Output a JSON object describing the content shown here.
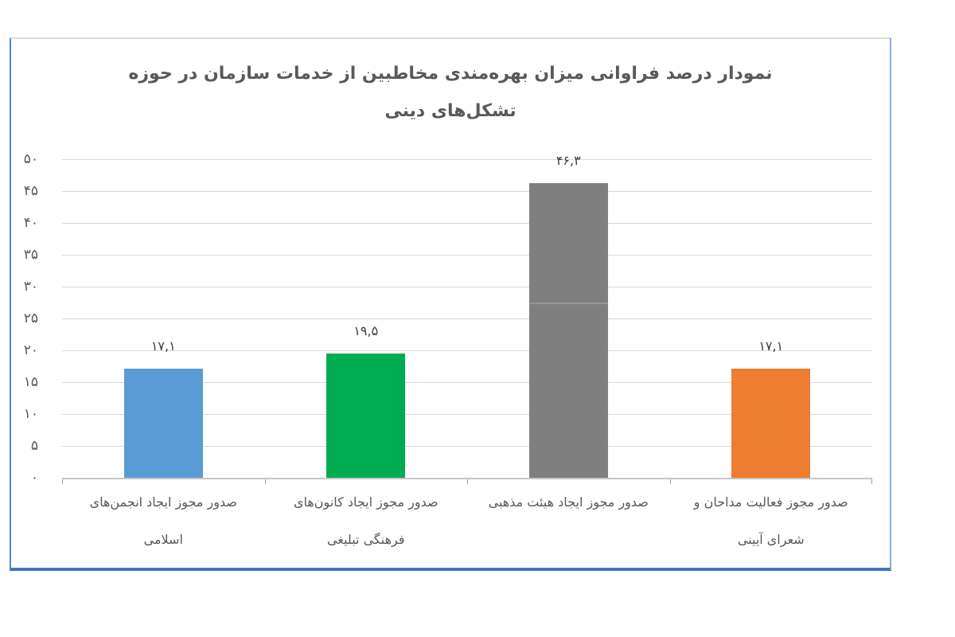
{
  "chart": {
    "title_line1": "نمودار درصد فراوانی میزان بهره‌مندی مخاطبین از خدمات سازمان در حوزه",
    "title_line2": "تشکل‌های دینی"
  },
  "chart_data": {
    "type": "bar",
    "direction": "rtl",
    "title": "نمودار درصد فراوانی میزان بهره‌مندی مخاطبین از خدمات سازمان در حوزه تشکل‌های دینی",
    "categories": [
      "صدور مجوز ایجاد انجمن‌های اسلامی",
      "صدور مجوز ایجاد کانون‌های فرهنگی تبلیغی",
      "صدور مجوز ایجاد هیئت مذهبی",
      "صدور مجوز فعالیت مداحان و شعرای آیینی"
    ],
    "categories_display": [
      [
        "صدور مجوز ایجاد انجمن‌های",
        "اسلامی"
      ],
      [
        "صدور مجوز ایجاد کانون‌های",
        "فرهنگی تبلیغی"
      ],
      [
        "صدور مجوز ایجاد هیئت مذهبی"
      ],
      [
        "صدور مجوز فعالیت مداحان و",
        "شعرای آیینی"
      ]
    ],
    "values": [
      17.1,
      19.5,
      46.3,
      17.1
    ],
    "value_labels": [
      "۱۷,۱",
      "۱۹,۵",
      "۴۶,۳",
      "۱۷,۱"
    ],
    "bar_colors": [
      "#5B9BD5",
      "#00AC50",
      "#7F7F7F",
      "#ED7D31"
    ],
    "ylim": [
      0,
      50
    ],
    "ytick_step": 5,
    "ytick_labels": [
      "۰",
      "۵",
      "۱۰",
      "۱۵",
      "۲۰",
      "۲۵",
      "۳۰",
      "۳۵",
      "۴۰",
      "۴۵",
      "۵۰"
    ],
    "grid": true,
    "legend": "none",
    "gridline_color": "#D9D9D9",
    "axis_color": "#C6C6C6",
    "tick_label_color": "#595959",
    "value_label_color": "#404040",
    "title_color": "#595959",
    "frame_border_bottom_color": "#4472C4",
    "frame_border_side_color": "#8EAADB"
  }
}
